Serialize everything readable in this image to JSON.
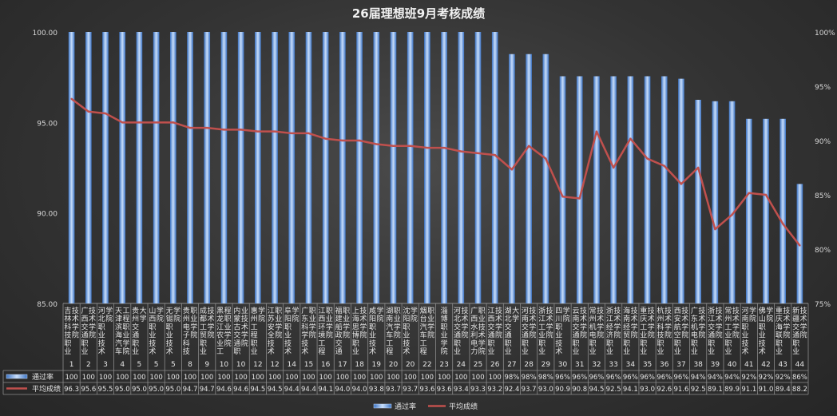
{
  "chart_data": {
    "type": "bar",
    "title": "26届理想班9月考核成绩",
    "left_axis": {
      "ylim": [
        85,
        100
      ],
      "ticks": [
        "85.00",
        "90.00",
        "95.00",
        "100.00"
      ]
    },
    "right_axis": {
      "ylim": [
        0.75,
        1.0
      ],
      "ticks": [
        "75%",
        "80%",
        "85%",
        "90%",
        "95%",
        "100%"
      ]
    },
    "categories": [
      {
        "rank": "1",
        "name": "吉林科技职业技术学院"
      },
      {
        "rank": "2",
        "name": "广西交通职业技术学院"
      },
      {
        "rank": "3",
        "name": "河北职业技术学院"
      },
      {
        "rank": "4",
        "name": "天津滨海汽车工程职业学院"
      },
      {
        "rank": "5",
        "name": "贵州交通职业大学"
      },
      {
        "rank": "5",
        "name": "山西职业技术学院"
      },
      {
        "rank": "5",
        "name": "无锡职业技术学院"
      },
      {
        "rank": "8",
        "name": "贵州电子科技职业学院"
      },
      {
        "rank": "9",
        "name": "成都工贸职业技术学院"
      },
      {
        "rank": "10",
        "name": "黑龙江农业工程职业学院"
      },
      {
        "rank": "10",
        "name": "内蒙古交通职业技术学院"
      },
      {
        "rank": "12",
        "name": "惠州工程职业学院"
      },
      {
        "rank": "12",
        "name": "江苏安全技术职业学院"
      },
      {
        "rank": "14",
        "name": "阜阳职业技术学院"
      },
      {
        "rank": "15",
        "name": "广东科学技术职业学院"
      },
      {
        "rank": "16",
        "name": "江西环境工程职业学院"
      },
      {
        "rank": "17",
        "name": "福建船政交通职业学院"
      },
      {
        "rank": "18",
        "name": "上海思博职业技术学院"
      },
      {
        "rank": "19",
        "name": "咸阳职业技术学院"
      },
      {
        "rank": "20",
        "name": "湖南汽车工程职业学院"
      },
      {
        "rank": "20",
        "name": "沈阳职业技术学院"
      },
      {
        "rank": "22",
        "name": "烟台汽车工程职业学院"
      },
      {
        "rank": "23",
        "name": "淄博职业学院"
      },
      {
        "rank": "24",
        "name": "河北交通职业技术学院"
      },
      {
        "rank": "25",
        "name": "广西水利电力职业技术学院"
      },
      {
        "rank": "26",
        "name": "江西交通职业技术学院"
      },
      {
        "rank": "27",
        "name": "湖北交通职业大学"
      },
      {
        "rank": "28",
        "name": "河南交通职业技术学院"
      },
      {
        "rank": "29",
        "name": "浙江工业职业技术学院"
      },
      {
        "rank": "30",
        "name": "四川职业技术学院"
      },
      {
        "rank": "31",
        "name": "云南交通职业技术学院"
      },
      {
        "rank": "32",
        "name": "常州机电职业技术学院"
      },
      {
        "rank": "33",
        "name": "浙江经济职业技术学院"
      },
      {
        "rank": "34",
        "name": "海南经贸职业技术学院"
      },
      {
        "rank": "35",
        "name": "重庆工业职业技术学院"
      },
      {
        "rank": "36",
        "name": "杭州科技职业技术学院"
      },
      {
        "rank": "37",
        "name": "西安航空职业技术学院"
      },
      {
        "rank": "38",
        "name": "广东机电职业技术学院"
      },
      {
        "rank": "39",
        "name": "浙江交通职业技术学院"
      },
      {
        "rank": "40",
        "name": "常州工业职业技术学院"
      },
      {
        "rank": "41",
        "name": "河南职业技术学院"
      },
      {
        "rank": "42",
        "name": "佛山职业技术学院"
      },
      {
        "rank": "43",
        "name": "重庆海联职业技术学院"
      },
      {
        "rank": "44",
        "name": "新疆交通职业技术学院"
      }
    ],
    "series": [
      {
        "name": "通过率",
        "type": "bar",
        "axis": "right",
        "color": "#6fa7e6",
        "labels": [
          "100",
          "100",
          "100",
          "100",
          "100",
          "100",
          "100",
          "100",
          "100",
          "100",
          "100",
          "100",
          "100",
          "100",
          "100",
          "100",
          "100",
          "100",
          "100",
          "100",
          "100",
          "100",
          "100",
          "100",
          "100",
          "100",
          "98%",
          "98%",
          "98%",
          "96%",
          "96%",
          "96%",
          "96%",
          "96%",
          "96%",
          "96%",
          "96%",
          "94%",
          "94%",
          "94%",
          "92%",
          "92%",
          "92%",
          "86%"
        ],
        "values": [
          1,
          1,
          1,
          1,
          1,
          1,
          1,
          1,
          1,
          1,
          1,
          1,
          1,
          1,
          1,
          1,
          1,
          1,
          1,
          1,
          1,
          1,
          1,
          1,
          1,
          1,
          0.9796,
          0.9796,
          0.9796,
          0.9592,
          0.9592,
          0.9592,
          0.9592,
          0.9592,
          0.9592,
          0.9592,
          0.9569,
          0.9375,
          0.9362,
          0.9362,
          0.92,
          0.92,
          0.92,
          0.86
        ]
      },
      {
        "name": "平均成绩",
        "type": "line",
        "axis": "left",
        "color": "#c0504d",
        "labels": [
          "96.3",
          "95.6",
          "95.5",
          "95.0",
          "95.0",
          "95.0",
          "95.0",
          "94.7",
          "94.7",
          "94.6",
          "94.6",
          "94.5",
          "94.5",
          "94.4",
          "94.4",
          "94.1",
          "94.0",
          "94.0",
          "93.8",
          "93.7",
          "93.7",
          "93.6",
          "93.6",
          "93.4",
          "93.3",
          "93.2",
          "92.4",
          "93.7",
          "93.0",
          "90.9",
          "90.8",
          "94.5",
          "92.5",
          "94.1",
          "93.0",
          "92.6",
          "91.6",
          "92.5",
          "89.1",
          "89.9",
          "91.1",
          "91.0",
          "89.4",
          "88.2"
        ],
        "values": [
          96.3,
          95.6,
          95.5,
          95.0,
          95.0,
          95.0,
          95.0,
          94.7,
          94.7,
          94.6,
          94.6,
          94.5,
          94.5,
          94.4,
          94.4,
          94.1,
          94.0,
          94.0,
          93.8,
          93.7,
          93.7,
          93.6,
          93.6,
          93.4,
          93.3,
          93.2,
          92.4,
          93.7,
          93.0,
          90.9,
          90.8,
          94.5,
          92.5,
          94.1,
          93.0,
          92.6,
          91.6,
          92.5,
          89.1,
          89.9,
          91.1,
          91.0,
          89.4,
          88.2
        ]
      }
    ],
    "legend": {
      "position": "bottom",
      "items": [
        "通过率",
        "平均成绩"
      ]
    },
    "grid": false
  }
}
